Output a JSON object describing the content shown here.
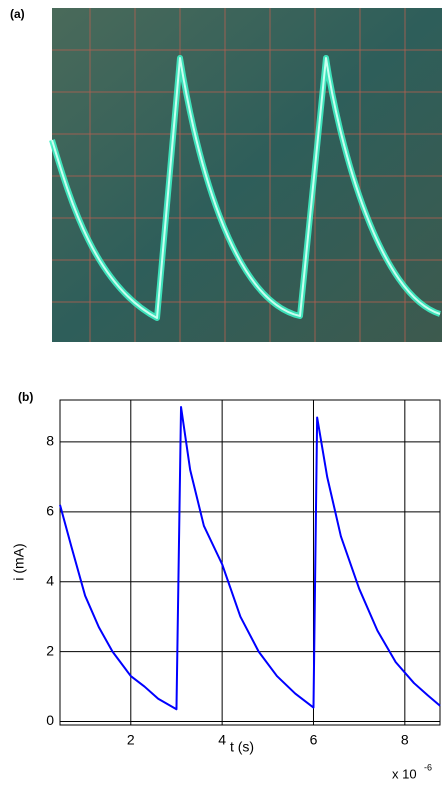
{
  "panel_a_label": "(a)",
  "chart_data": {
    "type": "line",
    "panel_label": "(b)",
    "x_label": "t (s)",
    "y_label": "i (mA)",
    "x_multiplier": "x 10",
    "x_multiplier_exponent": "-6",
    "x": [
      0.45,
      0.7,
      1.0,
      1.3,
      1.6,
      2.0,
      2.3,
      2.6,
      3.0,
      3.1,
      3.3,
      3.6,
      4.0,
      4.4,
      4.8,
      5.2,
      5.6,
      6.0,
      6.08,
      6.3,
      6.6,
      7.0,
      7.4,
      7.8,
      8.2,
      8.5,
      8.77
    ],
    "series": [
      {
        "color": "#0000ff",
        "values": [
          6.2,
          5.0,
          3.6,
          2.7,
          2.0,
          1.3,
          1.0,
          0.65,
          0.35,
          9.0,
          7.2,
          5.6,
          4.5,
          3.0,
          2.0,
          1.3,
          0.8,
          0.4,
          8.7,
          7.0,
          5.3,
          3.8,
          2.6,
          1.7,
          1.1,
          0.75,
          0.45
        ]
      }
    ],
    "xlim": [
      0.45,
      8.77
    ],
    "ylim": [
      -0.1,
      9.2
    ],
    "xticks": [
      2,
      4,
      6,
      8
    ],
    "yticks": [
      0,
      2,
      4,
      6,
      8
    ],
    "grid": true
  }
}
